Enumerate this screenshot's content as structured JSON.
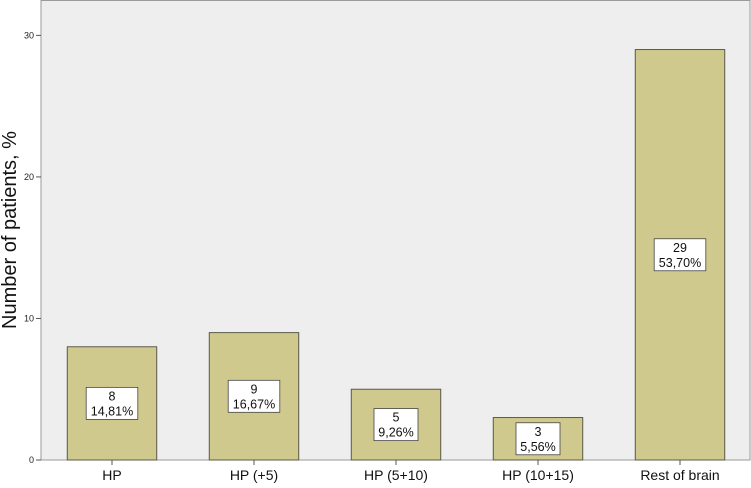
{
  "chart_data": {
    "type": "bar",
    "title": "",
    "xlabel": "",
    "ylabel": "Number of patients, %",
    "ylim": [
      0,
      32.5
    ],
    "yticks": [
      0,
      10,
      20,
      30
    ],
    "grid": false,
    "bar_color": "#d0c98d",
    "bar_stroke": "#5a5a4a",
    "categories": [
      "HP",
      "HP (+5)",
      "HP (5+10)",
      "HP (10+15)",
      "Rest of brain"
    ],
    "values": [
      8,
      9,
      5,
      3,
      29
    ],
    "labels": [
      {
        "count": "8",
        "percent": "14,81%"
      },
      {
        "count": "9",
        "percent": "16,67%"
      },
      {
        "count": "5",
        "percent": "9,26%"
      },
      {
        "count": "3",
        "percent": "5,56%"
      },
      {
        "count": "29",
        "percent": "53,70%"
      }
    ]
  }
}
